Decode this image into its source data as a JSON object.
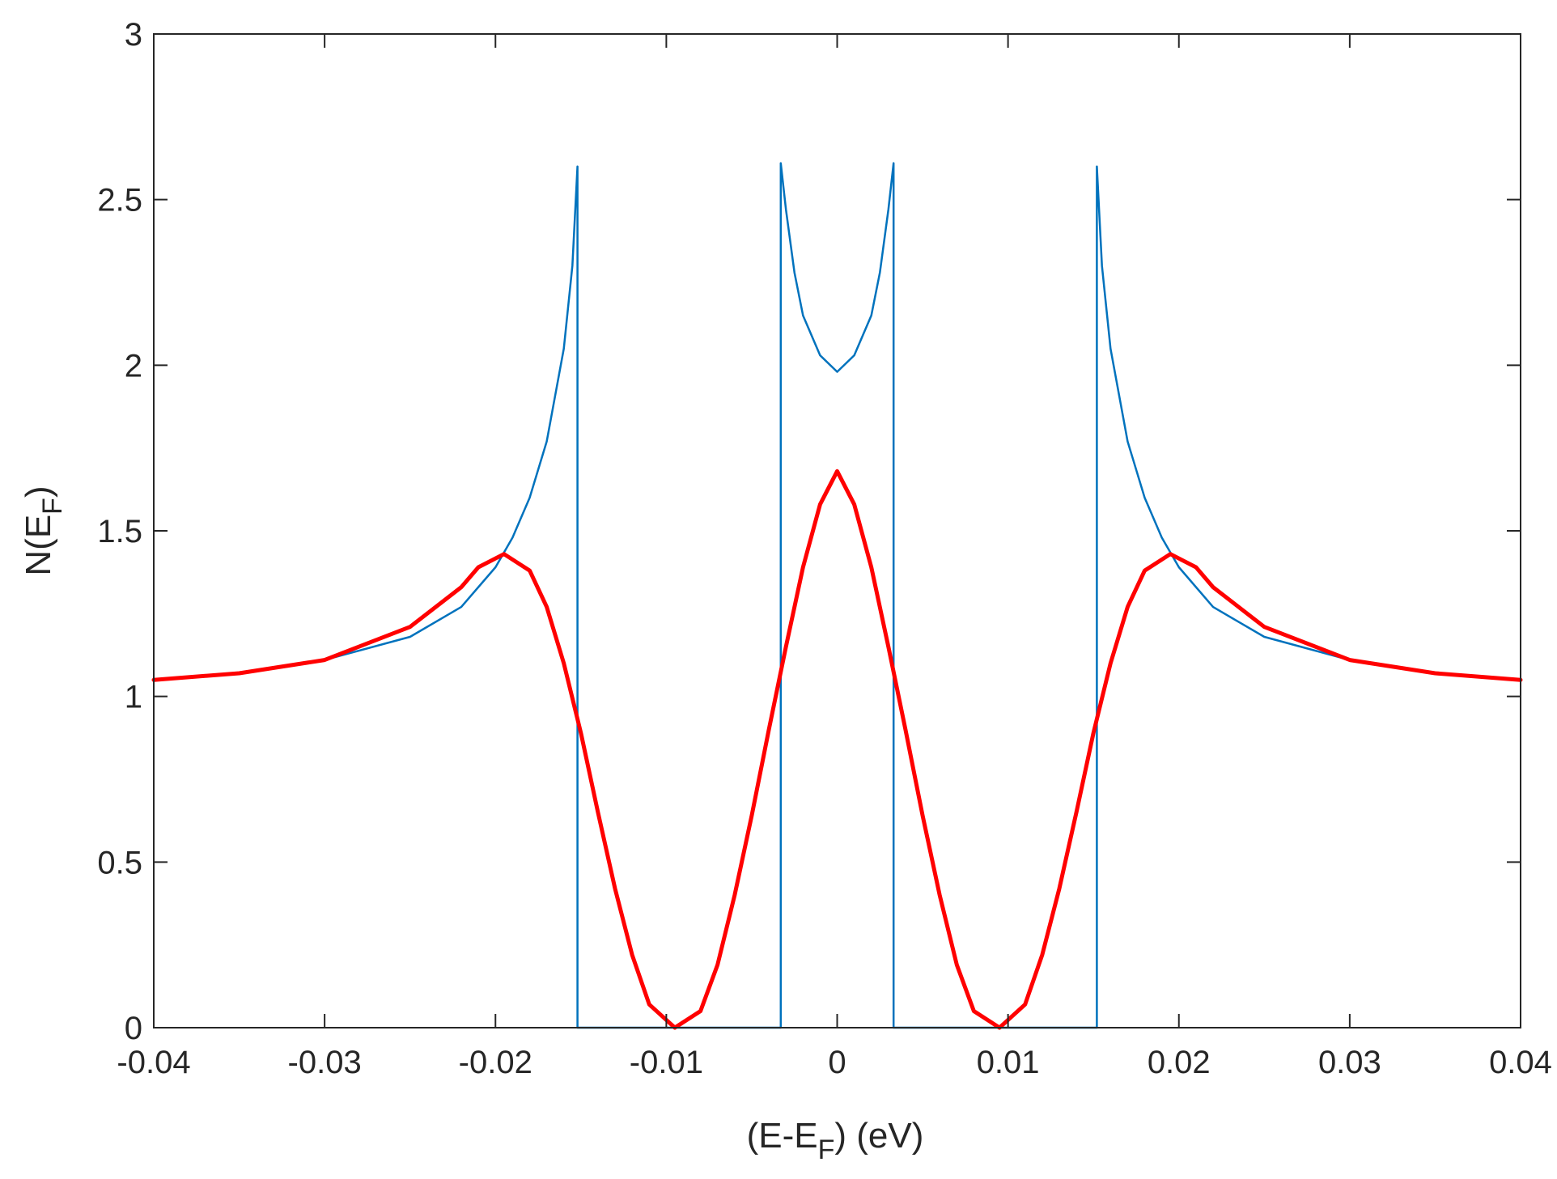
{
  "chart_data": {
    "type": "line",
    "xlabel": "(E-E_F) (eV)",
    "ylabel": "N(E_F)",
    "xlabel_parts": {
      "pre": "(E-E",
      "sub": "F",
      "post": ") (eV)"
    },
    "ylabel_parts": {
      "pre": "N(E",
      "sub": "F",
      "post": ")"
    },
    "xlim": [
      -0.04,
      0.04
    ],
    "ylim": [
      0,
      3
    ],
    "xticks": [
      -0.04,
      -0.03,
      -0.02,
      -0.01,
      0,
      0.01,
      0.02,
      0.03,
      0.04
    ],
    "xtick_labels": [
      "-0.04",
      "-0.03",
      "-0.02",
      "-0.01",
      "0",
      "0.01",
      "0.02",
      "0.03",
      "0.04"
    ],
    "yticks": [
      0,
      0.5,
      1,
      1.5,
      2,
      2.5,
      3
    ],
    "ytick_labels": [
      "0",
      "0.5",
      "1",
      "1.5",
      "2",
      "2.5",
      "3"
    ],
    "grid": false,
    "series": [
      {
        "color": "#0072BD",
        "line_width": "thin",
        "x": [
          -0.04,
          -0.035,
          -0.03,
          -0.025,
          -0.022,
          -0.02,
          -0.019,
          -0.018,
          -0.017,
          -0.016,
          -0.0155,
          -0.0152,
          -0.0152,
          -0.0033,
          -0.0033,
          -0.003,
          -0.0025,
          -0.002,
          -0.001,
          0,
          0.001,
          0.002,
          0.0025,
          0.003,
          0.0033,
          0.0033,
          0.0152,
          0.0152,
          0.0155,
          0.016,
          0.017,
          0.018,
          0.019,
          0.02,
          0.022,
          0.025,
          0.03,
          0.035,
          0.04
        ],
        "y": [
          1.05,
          1.07,
          1.11,
          1.18,
          1.27,
          1.39,
          1.48,
          1.6,
          1.77,
          2.05,
          2.3,
          2.6,
          0,
          0,
          2.61,
          2.47,
          2.28,
          2.15,
          2.03,
          1.98,
          2.03,
          2.15,
          2.28,
          2.47,
          2.61,
          0,
          0,
          2.6,
          2.3,
          2.05,
          1.77,
          1.6,
          1.48,
          1.39,
          1.27,
          1.18,
          1.11,
          1.07,
          1.05
        ]
      },
      {
        "color": "#FF0000",
        "line_width": "thick",
        "x": [
          -0.04,
          -0.035,
          -0.03,
          -0.025,
          -0.022,
          -0.021,
          -0.0195,
          -0.018,
          -0.017,
          -0.016,
          -0.015,
          -0.014,
          -0.013,
          -0.012,
          -0.011,
          -0.0095,
          -0.008,
          -0.007,
          -0.006,
          -0.005,
          -0.004,
          -0.003,
          -0.002,
          -0.001,
          0,
          0.001,
          0.002,
          0.003,
          0.004,
          0.005,
          0.006,
          0.007,
          0.008,
          0.0095,
          0.011,
          0.012,
          0.013,
          0.014,
          0.015,
          0.016,
          0.017,
          0.018,
          0.0195,
          0.021,
          0.022,
          0.025,
          0.03,
          0.035,
          0.04
        ],
        "y": [
          1.05,
          1.07,
          1.11,
          1.21,
          1.33,
          1.39,
          1.43,
          1.38,
          1.27,
          1.1,
          0.89,
          0.65,
          0.42,
          0.22,
          0.07,
          0.0,
          0.05,
          0.19,
          0.4,
          0.64,
          0.9,
          1.15,
          1.39,
          1.58,
          1.68,
          1.58,
          1.39,
          1.15,
          0.9,
          0.64,
          0.4,
          0.19,
          0.05,
          0.0,
          0.07,
          0.22,
          0.42,
          0.65,
          0.89,
          1.1,
          1.27,
          1.38,
          1.43,
          1.39,
          1.33,
          1.21,
          1.11,
          1.07,
          1.05
        ]
      }
    ]
  }
}
